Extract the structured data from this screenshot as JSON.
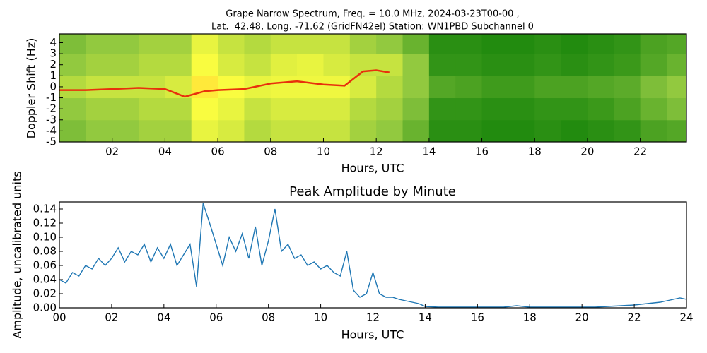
{
  "chart_data": [
    {
      "type": "heatmap",
      "title": [
        "Grape Narrow Spectrum, Freq. = 10.0 MHz, 2024-03-23T00-00 ,",
        "Lat.  42.48, Long. -71.62 (GridFN42el) Station: WN1PBD Subchannel 0"
      ],
      "xlabel": "Hours, UTC",
      "ylabel": "Doppler Shift (Hz)",
      "xlim": [
        0,
        23.75
      ],
      "ylim": [
        -5,
        4.8
      ],
      "xticks": [
        {
          "value": 2,
          "label": "02"
        },
        {
          "value": 4,
          "label": "04"
        },
        {
          "value": 6,
          "label": "06"
        },
        {
          "value": 8,
          "label": "08"
        },
        {
          "value": 10,
          "label": "10"
        },
        {
          "value": 12,
          "label": "12"
        },
        {
          "value": 14,
          "label": "14"
        },
        {
          "value": 16,
          "label": "16"
        },
        {
          "value": 18,
          "label": "18"
        },
        {
          "value": 20,
          "label": "20"
        },
        {
          "value": 22,
          "label": "22"
        }
      ],
      "yticks": [
        -5,
        -4,
        -3,
        -2,
        -1,
        0,
        1,
        2,
        3,
        4
      ],
      "x_bins": [
        0,
        1,
        2,
        3,
        4,
        5,
        6,
        7,
        8,
        9,
        10,
        11,
        12,
        13,
        14,
        15,
        16,
        17,
        18,
        19,
        20,
        21,
        22,
        23,
        23.75
      ],
      "y_bins": [
        -5,
        -3,
        -1,
        1,
        3,
        4.8
      ],
      "colormap": [
        "#007800",
        "#8cc63f",
        "#ffff40",
        "#ff2000"
      ],
      "z": [
        [
          0.3,
          0.35,
          0.35,
          0.4,
          0.4,
          0.6,
          0.55,
          0.45,
          0.5,
          0.5,
          0.5,
          0.4,
          0.35,
          0.25,
          0.1,
          0.1,
          0.08,
          0.08,
          0.1,
          0.08,
          0.1,
          0.12,
          0.18,
          0.2
        ],
        [
          0.35,
          0.4,
          0.4,
          0.45,
          0.45,
          0.65,
          0.6,
          0.5,
          0.55,
          0.55,
          0.55,
          0.45,
          0.4,
          0.3,
          0.12,
          0.12,
          0.1,
          0.1,
          0.12,
          0.12,
          0.14,
          0.18,
          0.25,
          0.3
        ],
        [
          0.45,
          0.5,
          0.5,
          0.5,
          0.55,
          0.7,
          0.65,
          0.6,
          0.62,
          0.62,
          0.62,
          0.55,
          0.45,
          0.35,
          0.2,
          0.18,
          0.15,
          0.15,
          0.18,
          0.18,
          0.2,
          0.22,
          0.3,
          0.35
        ],
        [
          0.35,
          0.4,
          0.4,
          0.45,
          0.45,
          0.65,
          0.55,
          0.5,
          0.58,
          0.6,
          0.55,
          0.5,
          0.5,
          0.35,
          0.12,
          0.12,
          0.1,
          0.1,
          0.12,
          0.1,
          0.12,
          0.14,
          0.2,
          0.25
        ],
        [
          0.3,
          0.35,
          0.35,
          0.4,
          0.4,
          0.6,
          0.5,
          0.45,
          0.5,
          0.5,
          0.5,
          0.4,
          0.35,
          0.25,
          0.1,
          0.1,
          0.08,
          0.08,
          0.1,
          0.08,
          0.1,
          0.12,
          0.18,
          0.2
        ]
      ],
      "trace": {
        "color": "#e8300c",
        "x": [
          0,
          1,
          2,
          3,
          4,
          4.75,
          5.5,
          6,
          7,
          8,
          9,
          10,
          10.8,
          11.5,
          12,
          12.5
        ],
        "values": [
          -0.3,
          -0.3,
          -0.2,
          -0.1,
          -0.2,
          -0.9,
          -0.4,
          -0.3,
          -0.2,
          0.3,
          0.5,
          0.2,
          0.1,
          1.4,
          1.5,
          1.3
        ]
      }
    },
    {
      "type": "line",
      "title": "Peak Amplitude by Minute",
      "xlabel": "Hours, UTC",
      "ylabel": "Amplitude, uncalibrated units",
      "xlim": [
        0,
        24
      ],
      "ylim": [
        0,
        0.15
      ],
      "xticks": [
        {
          "value": 0,
          "label": "00"
        },
        {
          "value": 2,
          "label": "02"
        },
        {
          "value": 4,
          "label": "04"
        },
        {
          "value": 6,
          "label": "06"
        },
        {
          "value": 8,
          "label": "08"
        },
        {
          "value": 10,
          "label": "10"
        },
        {
          "value": 12,
          "label": "12"
        },
        {
          "value": 14,
          "label": "14"
        },
        {
          "value": 16,
          "label": "16"
        },
        {
          "value": 18,
          "label": "18"
        },
        {
          "value": 20,
          "label": "20"
        },
        {
          "value": 22,
          "label": "22"
        },
        {
          "value": 24,
          "label": "24"
        }
      ],
      "yticks": [
        {
          "value": 0,
          "label": "0.00"
        },
        {
          "value": 0.02,
          "label": "0.02"
        },
        {
          "value": 0.04,
          "label": "0.04"
        },
        {
          "value": 0.06,
          "label": "0.06"
        },
        {
          "value": 0.08,
          "label": "0.08"
        },
        {
          "value": 0.1,
          "label": "0.10"
        },
        {
          "value": 0.12,
          "label": "0.12"
        },
        {
          "value": 0.14,
          "label": "0.14"
        }
      ],
      "color": "#1f77b4",
      "x": [
        0,
        0.25,
        0.5,
        0.75,
        1,
        1.25,
        1.5,
        1.75,
        2,
        2.25,
        2.5,
        2.75,
        3,
        3.25,
        3.5,
        3.75,
        4,
        4.25,
        4.5,
        4.75,
        5,
        5.25,
        5.5,
        5.75,
        6,
        6.25,
        6.5,
        6.75,
        7,
        7.25,
        7.5,
        7.75,
        8,
        8.25,
        8.5,
        8.75,
        9,
        9.25,
        9.5,
        9.75,
        10,
        10.25,
        10.5,
        10.75,
        11,
        11.25,
        11.5,
        11.75,
        12,
        12.25,
        12.5,
        12.75,
        13,
        13.25,
        13.5,
        13.75,
        14,
        14.5,
        15,
        15.5,
        16,
        16.5,
        17,
        17.5,
        18,
        18.5,
        19,
        19.5,
        20,
        20.5,
        21,
        21.5,
        22,
        22.5,
        23,
        23.25,
        23.5,
        23.75,
        24
      ],
      "values": [
        0.04,
        0.035,
        0.05,
        0.045,
        0.06,
        0.055,
        0.07,
        0.06,
        0.07,
        0.085,
        0.065,
        0.08,
        0.075,
        0.09,
        0.065,
        0.085,
        0.07,
        0.09,
        0.06,
        0.075,
        0.09,
        0.03,
        0.148,
        0.12,
        0.09,
        0.06,
        0.1,
        0.08,
        0.105,
        0.07,
        0.115,
        0.06,
        0.095,
        0.14,
        0.08,
        0.09,
        0.07,
        0.075,
        0.06,
        0.065,
        0.055,
        0.06,
        0.05,
        0.045,
        0.08,
        0.025,
        0.015,
        0.02,
        0.05,
        0.02,
        0.015,
        0.015,
        0.012,
        0.01,
        0.008,
        0.006,
        0.002,
        0.001,
        0.001,
        0.001,
        0.001,
        0.001,
        0.001,
        0.003,
        0.001,
        0.001,
        0.001,
        0.001,
        0.001,
        0.001,
        0.002,
        0.003,
        0.004,
        0.006,
        0.008,
        0.01,
        0.012,
        0.014,
        0.012
      ]
    }
  ]
}
